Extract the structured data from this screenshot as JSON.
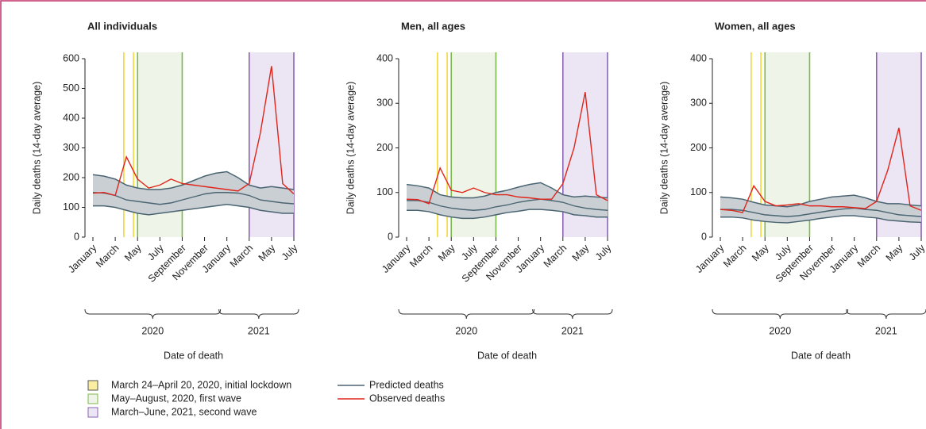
{
  "chart_data": [
    {
      "type": "line",
      "title": "All individuals",
      "y_label": "Daily deaths (14-day average)",
      "x_label": "Date of death",
      "x": [
        "2020-01",
        "2020-02",
        "2020-03",
        "2020-04",
        "2020-05",
        "2020-06",
        "2020-07",
        "2020-08",
        "2020-09",
        "2020-10",
        "2020-11",
        "2020-12",
        "2021-01",
        "2021-02",
        "2021-03",
        "2021-04",
        "2021-05",
        "2021-06",
        "2021-07"
      ],
      "series": [
        {
          "name": "Predicted deaths",
          "color": "#4a6472",
          "values": [
            150,
            148,
            140,
            125,
            120,
            115,
            110,
            115,
            125,
            135,
            145,
            150,
            150,
            148,
            140,
            125,
            120,
            115,
            112
          ],
          "upper": [
            210,
            205,
            195,
            175,
            165,
            160,
            160,
            165,
            175,
            190,
            205,
            215,
            220,
            200,
            175,
            165,
            170,
            165,
            160
          ],
          "lower": [
            105,
            105,
            100,
            90,
            80,
            75,
            80,
            85,
            90,
            95,
            100,
            105,
            110,
            105,
            100,
            90,
            85,
            80,
            80
          ]
        },
        {
          "name": "Observed deaths",
          "color": "#e0261c",
          "values": [
            148,
            150,
            140,
            270,
            195,
            165,
            175,
            195,
            180,
            175,
            170,
            165,
            160,
            155,
            180,
            350,
            575,
            180,
            145
          ]
        }
      ],
      "ylim": [
        0,
        600
      ],
      "yticks": [
        0,
        100,
        200,
        300,
        400,
        500,
        600
      ]
    },
    {
      "type": "line",
      "title": "Men, all ages",
      "y_label": "Daily deaths (14-day average)",
      "x_label": "Date of death",
      "x": [
        "2020-01",
        "2020-02",
        "2020-03",
        "2020-04",
        "2020-05",
        "2020-06",
        "2020-07",
        "2020-08",
        "2020-09",
        "2020-10",
        "2020-11",
        "2020-12",
        "2021-01",
        "2021-02",
        "2021-03",
        "2021-04",
        "2021-05",
        "2021-06",
        "2021-07"
      ],
      "series": [
        {
          "name": "Predicted deaths",
          "color": "#4a6472",
          "values": [
            82,
            82,
            78,
            70,
            65,
            62,
            60,
            62,
            68,
            72,
            78,
            82,
            85,
            82,
            78,
            70,
            65,
            62,
            60
          ],
          "upper": [
            118,
            115,
            110,
            95,
            90,
            88,
            88,
            92,
            100,
            105,
            112,
            118,
            122,
            110,
            95,
            90,
            92,
            90,
            88
          ],
          "lower": [
            60,
            60,
            57,
            50,
            45,
            42,
            42,
            45,
            50,
            55,
            58,
            62,
            62,
            60,
            57,
            50,
            48,
            45,
            45
          ]
        },
        {
          "name": "Observed deaths",
          "color": "#e0261c",
          "values": [
            85,
            84,
            75,
            155,
            105,
            100,
            110,
            100,
            95,
            95,
            90,
            88,
            85,
            85,
            120,
            200,
            325,
            95,
            82
          ]
        }
      ],
      "ylim": [
        0,
        400
      ],
      "yticks": [
        0,
        100,
        200,
        300,
        400
      ]
    },
    {
      "type": "line",
      "title": "Women, all ages",
      "y_label": "Daily deaths (14-day average)",
      "x_label": "Date of death",
      "x": [
        "2020-01",
        "2020-02",
        "2020-03",
        "2020-04",
        "2020-05",
        "2020-06",
        "2020-07",
        "2020-08",
        "2020-09",
        "2020-10",
        "2020-11",
        "2020-12",
        "2021-01",
        "2021-02",
        "2021-03",
        "2021-04",
        "2021-05",
        "2021-06",
        "2021-07"
      ],
      "series": [
        {
          "name": "Predicted deaths",
          "color": "#4a6472",
          "values": [
            62,
            62,
            60,
            55,
            50,
            48,
            46,
            48,
            52,
            56,
            60,
            63,
            65,
            62,
            60,
            55,
            50,
            48,
            46
          ],
          "upper": [
            90,
            88,
            85,
            78,
            72,
            70,
            68,
            72,
            80,
            85,
            90,
            92,
            94,
            88,
            80,
            75,
            75,
            72,
            70
          ],
          "lower": [
            45,
            45,
            43,
            38,
            35,
            33,
            32,
            35,
            38,
            42,
            45,
            48,
            48,
            45,
            43,
            38,
            36,
            34,
            33
          ]
        },
        {
          "name": "Observed deaths",
          "color": "#e0261c",
          "values": [
            62,
            60,
            55,
            115,
            80,
            70,
            72,
            75,
            70,
            70,
            68,
            68,
            66,
            64,
            80,
            150,
            245,
            70,
            60
          ]
        }
      ],
      "ylim": [
        0,
        400
      ],
      "yticks": [
        0,
        100,
        200,
        300,
        400
      ]
    }
  ],
  "xticks": [
    {
      "value": "2020-01",
      "label": "January"
    },
    {
      "value": "2020-03",
      "label": "March"
    },
    {
      "value": "2020-05",
      "label": "May"
    },
    {
      "value": "2020-07",
      "label": "July"
    },
    {
      "value": "2020-09",
      "label": "September"
    },
    {
      "value": "2020-11",
      "label": "November"
    },
    {
      "value": "2021-01",
      "label": "January"
    },
    {
      "value": "2021-03",
      "label": "March"
    },
    {
      "value": "2021-05",
      "label": "May"
    },
    {
      "value": "2021-07",
      "label": "July"
    }
  ],
  "years": [
    {
      "label": "2020",
      "start": "2020-01",
      "end": "2020-12"
    },
    {
      "label": "2021",
      "start": "2021-01",
      "end": "2021-07"
    }
  ],
  "spans": [
    {
      "label": "March 24–April 20, 2020, initial lockdown",
      "start": "2020-03-24",
      "end": "2020-04-20",
      "color": "#f5d838",
      "style": "lines"
    },
    {
      "label": "May–August, 2020, first wave",
      "start": "2020-05",
      "end": "2020-08",
      "color": "#7db84a",
      "fill": "#eef5e8",
      "style": "band"
    },
    {
      "label": "March–June, 2021, second wave",
      "start": "2021-03",
      "end": "2021-06",
      "color": "#8a63b5",
      "fill": "#ece5f3",
      "style": "band"
    }
  ]
}
